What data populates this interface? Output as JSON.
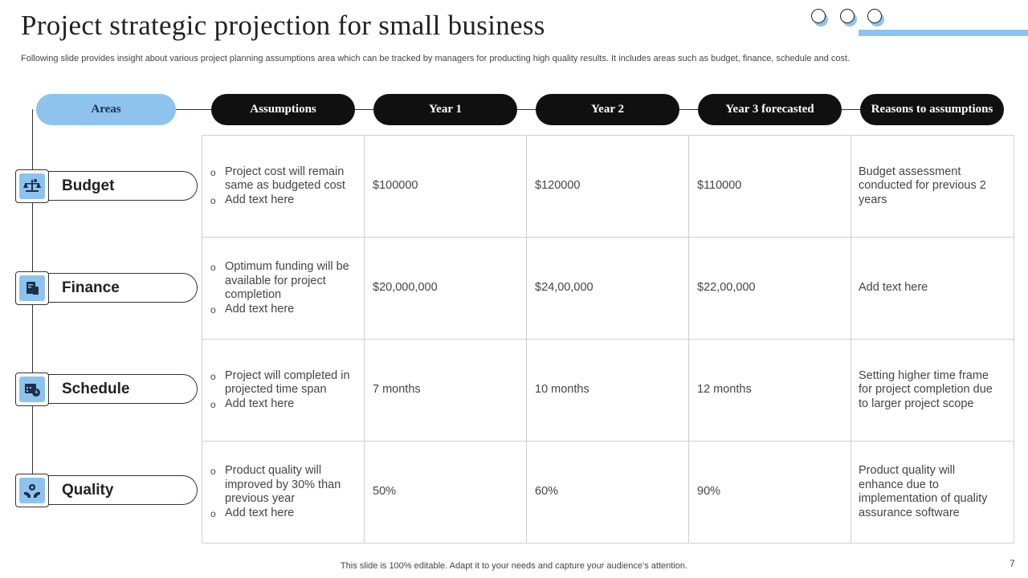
{
  "slide": {
    "title": "Project strategic projection for small business",
    "subtitle": "Following slide provides insight about various project planning assumptions area which can be tracked by managers for producting high quality results. It includes areas such as budget, finance, schedule and cost.",
    "footer": "This slide is 100% editable. Adapt it to your needs and capture your audience’s attention.",
    "page_number": "7"
  },
  "colors": {
    "accent_blue": "#8ec3ee",
    "pill_dark": "#111010",
    "grid_line": "#cfcfcf"
  },
  "headers": {
    "areas": "Areas",
    "assumptions": "Assumptions",
    "year1": "Year 1",
    "year2": "Year 2",
    "year3": "Year 3 forecasted",
    "reasons": "Reasons to assumptions"
  },
  "rows": [
    {
      "area": "Budget",
      "icon": "scale-money-icon",
      "assumptions": [
        "Project cost will remain same as budgeted cost",
        "Add text here"
      ],
      "year1": "$100000",
      "year2": "$120000",
      "year3": "$110000",
      "reason": "Budget assessment conducted for previous 2 years"
    },
    {
      "area": "Finance",
      "icon": "finance-document-icon",
      "assumptions": [
        "Optimum funding will be available for project completion",
        "Add text here"
      ],
      "year1": "$20,000,000",
      "year2": "$24,00,000",
      "year3": "$22,00,000",
      "reason": "Add text here"
    },
    {
      "area": "Schedule",
      "icon": "calendar-clock-icon",
      "assumptions": [
        "Project will completed in projected time span",
        "Add text here"
      ],
      "year1": "7 months",
      "year2": "10 months",
      "year3": "12 months",
      "reason": "Setting higher time frame for project completion due to larger project scope"
    },
    {
      "area": "Quality",
      "icon": "quality-hands-icon",
      "assumptions": [
        "Product quality will improved by 30% than previous year",
        "Add text here"
      ],
      "year1": "50%",
      "year2": "60%",
      "year3": "90%",
      "reason": "Product quality will enhance due to implementation of quality assurance software"
    }
  ]
}
